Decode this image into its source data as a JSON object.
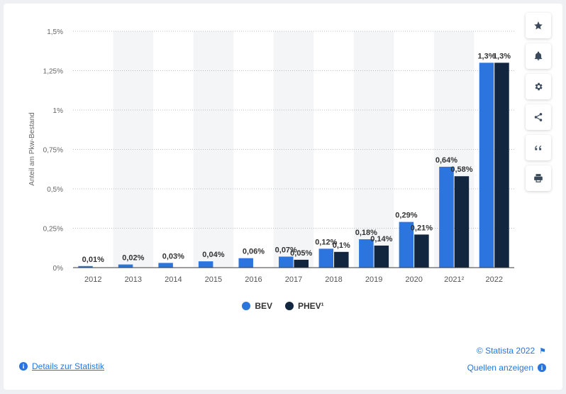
{
  "sidebar": {
    "icons": [
      "star-icon",
      "bell-icon",
      "gear-icon",
      "share-icon",
      "quote-icon",
      "print-icon"
    ]
  },
  "footer": {
    "details_label": "Details zur Statistik",
    "copyright": "© Statista 2022",
    "sources_label": "Quellen anzeigen"
  },
  "colors": {
    "bev": "#2c75df",
    "phev": "#13263f",
    "accent": "#2876dd"
  },
  "chart_data": {
    "type": "bar",
    "categories": [
      "2012",
      "2013",
      "2014",
      "2015",
      "2016",
      "2017",
      "2018",
      "2019",
      "2020",
      "2021²",
      "2022"
    ],
    "series": [
      {
        "name": "BEV",
        "values": [
          0.01,
          0.02,
          0.03,
          0.04,
          0.06,
          0.07,
          0.12,
          0.18,
          0.29,
          0.64,
          1.3
        ],
        "labels": [
          "0,01%",
          "0,02%",
          "0,03%",
          "0,04%",
          "0,06%",
          "0,07%",
          "0,12%",
          "0,18%",
          "0,29%",
          "0,64%",
          "1,3%"
        ]
      },
      {
        "name": "PHEV¹",
        "values": [
          null,
          null,
          null,
          null,
          null,
          0.05,
          0.1,
          0.14,
          0.21,
          0.58,
          1.3
        ],
        "labels": [
          "",
          "",
          "",
          "",
          "",
          "0,05%",
          "0,1%",
          "0,14%",
          "0,21%",
          "0,58%",
          "1,3%"
        ]
      }
    ],
    "ylabel": "Anteil am Pkw-Bestand",
    "xlabel": "",
    "ylim": [
      0,
      1.5
    ],
    "yticks": [
      0,
      0.25,
      0.5,
      0.75,
      1,
      1.25,
      1.5
    ],
    "ytick_labels": [
      "0%",
      "0,25%",
      "0,5%",
      "0,75%",
      "1%",
      "1,25%",
      "1,5%"
    ],
    "grid": true,
    "legend": "bottom-center"
  }
}
